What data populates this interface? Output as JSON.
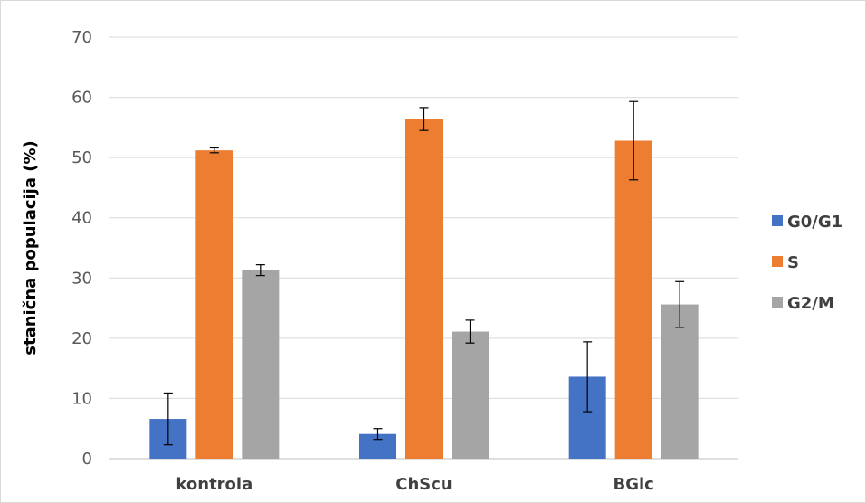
{
  "chart_data": {
    "type": "bar",
    "title": "",
    "xlabel": "",
    "ylabel": "stanična populacija (%)",
    "ylim": [
      0,
      70
    ],
    "yticks": [
      0,
      10,
      20,
      30,
      40,
      50,
      60,
      70
    ],
    "grid": true,
    "legend_position": "right",
    "categories": [
      "kontrola",
      "ChScu",
      "BGlc"
    ],
    "series": [
      {
        "name": "G0/G1",
        "color": "#4472C4",
        "values": [
          6.6,
          4.1,
          13.6
        ],
        "errors": [
          4.3,
          0.9,
          5.8
        ]
      },
      {
        "name": "S",
        "color": "#ED7D31",
        "values": [
          51.2,
          56.4,
          52.8
        ],
        "errors": [
          0.4,
          1.9,
          6.5
        ]
      },
      {
        "name": "G2/M",
        "color": "#A5A5A5",
        "values": [
          31.3,
          21.1,
          25.6
        ],
        "errors": [
          0.9,
          1.9,
          3.8
        ]
      }
    ]
  }
}
